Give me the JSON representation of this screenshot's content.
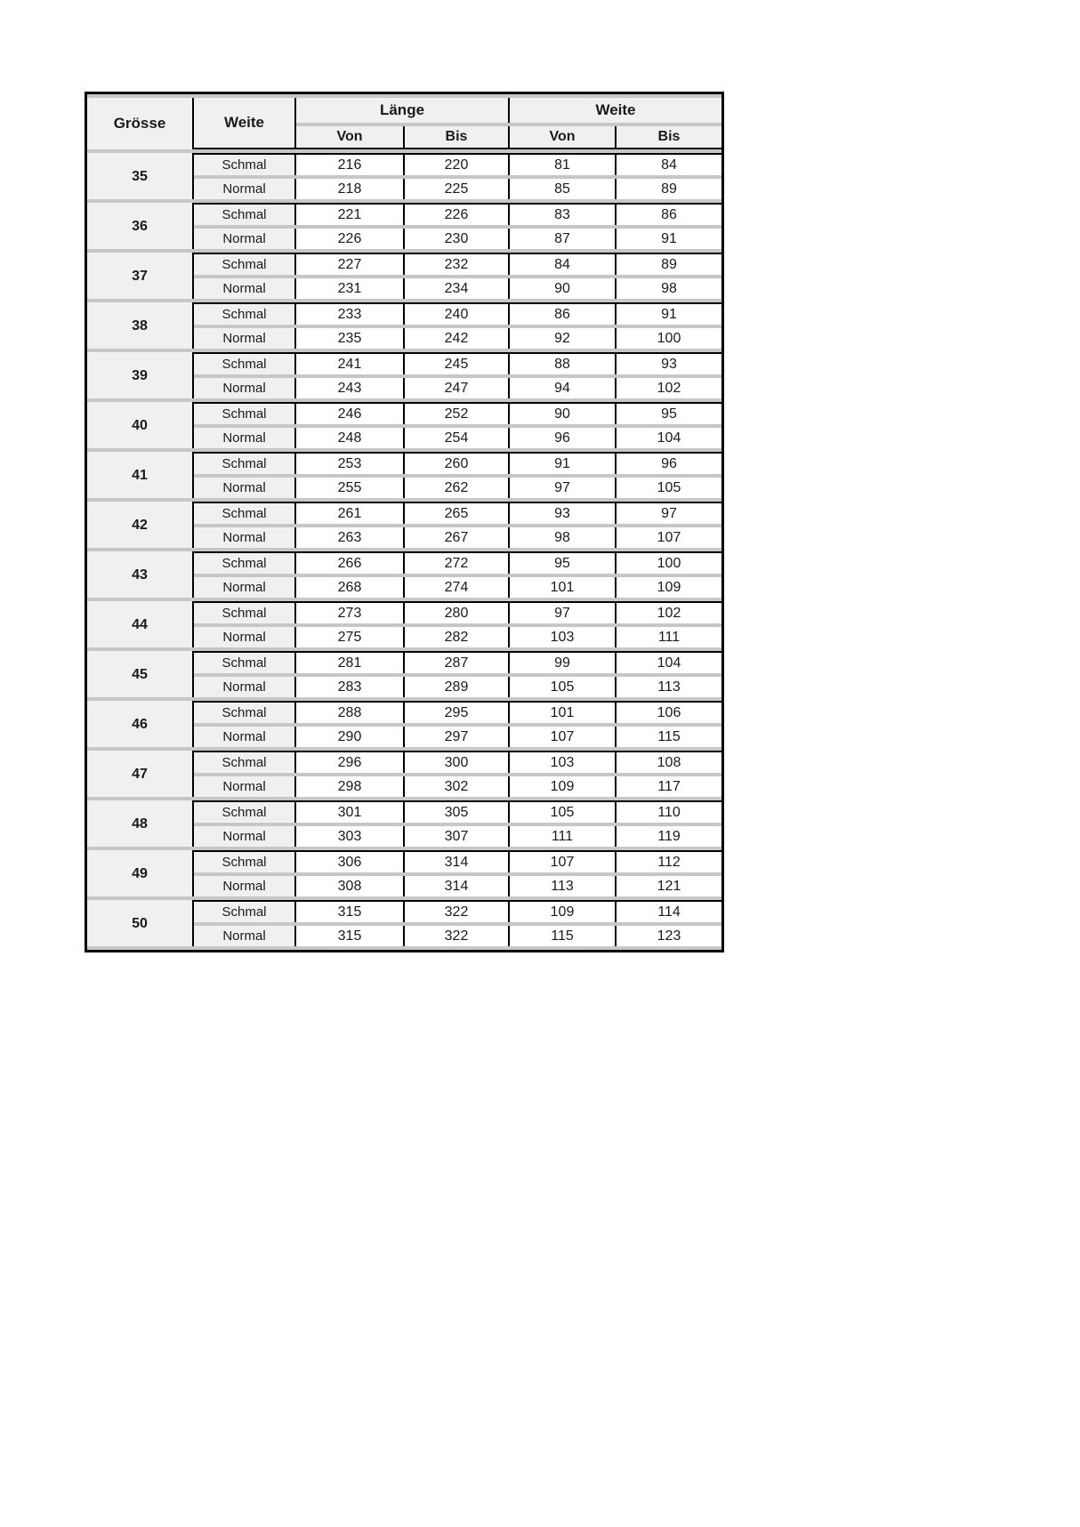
{
  "document": {
    "table": {
      "col_headers": {
        "grosse": "Grösse",
        "weite": "Weite",
        "laenge_group": "Länge",
        "weite_group": "Weite",
        "von": "Von",
        "bis": "Bis"
      },
      "rows": [
        {
          "size": "35",
          "variants": [
            {
              "weite": "Schmal",
              "laenge_von": "216",
              "laenge_bis": "220",
              "weite_von": "81",
              "weite_bis": "84"
            },
            {
              "weite": "Normal",
              "laenge_von": "218",
              "laenge_bis": "225",
              "weite_von": "85",
              "weite_bis": "89"
            }
          ]
        },
        {
          "size": "36",
          "variants": [
            {
              "weite": "Schmal",
              "laenge_von": "221",
              "laenge_bis": "226",
              "weite_von": "83",
              "weite_bis": "86"
            },
            {
              "weite": "Normal",
              "laenge_von": "226",
              "laenge_bis": "230",
              "weite_von": "87",
              "weite_bis": "91"
            }
          ]
        },
        {
          "size": "37",
          "variants": [
            {
              "weite": "Schmal",
              "laenge_von": "227",
              "laenge_bis": "232",
              "weite_von": "84",
              "weite_bis": "89"
            },
            {
              "weite": "Normal",
              "laenge_von": "231",
              "laenge_bis": "234",
              "weite_von": "90",
              "weite_bis": "98"
            }
          ]
        },
        {
          "size": "38",
          "variants": [
            {
              "weite": "Schmal",
              "laenge_von": "233",
              "laenge_bis": "240",
              "weite_von": "86",
              "weite_bis": "91"
            },
            {
              "weite": "Normal",
              "laenge_von": "235",
              "laenge_bis": "242",
              "weite_von": "92",
              "weite_bis": "100"
            }
          ]
        },
        {
          "size": "39",
          "variants": [
            {
              "weite": "Schmal",
              "laenge_von": "241",
              "laenge_bis": "245",
              "weite_von": "88",
              "weite_bis": "93"
            },
            {
              "weite": "Normal",
              "laenge_von": "243",
              "laenge_bis": "247",
              "weite_von": "94",
              "weite_bis": "102"
            }
          ]
        },
        {
          "size": "40",
          "variants": [
            {
              "weite": "Schmal",
              "laenge_von": "246",
              "laenge_bis": "252",
              "weite_von": "90",
              "weite_bis": "95"
            },
            {
              "weite": "Normal",
              "laenge_von": "248",
              "laenge_bis": "254",
              "weite_von": "96",
              "weite_bis": "104"
            }
          ]
        },
        {
          "size": "41",
          "variants": [
            {
              "weite": "Schmal",
              "laenge_von": "253",
              "laenge_bis": "260",
              "weite_von": "91",
              "weite_bis": "96"
            },
            {
              "weite": "Normal",
              "laenge_von": "255",
              "laenge_bis": "262",
              "weite_von": "97",
              "weite_bis": "105"
            }
          ]
        },
        {
          "size": "42",
          "variants": [
            {
              "weite": "Schmal",
              "laenge_von": "261",
              "laenge_bis": "265",
              "weite_von": "93",
              "weite_bis": "97"
            },
            {
              "weite": "Normal",
              "laenge_von": "263",
              "laenge_bis": "267",
              "weite_von": "98",
              "weite_bis": "107"
            }
          ]
        },
        {
          "size": "43",
          "variants": [
            {
              "weite": "Schmal",
              "laenge_von": "266",
              "laenge_bis": "272",
              "weite_von": "95",
              "weite_bis": "100"
            },
            {
              "weite": "Normal",
              "laenge_von": "268",
              "laenge_bis": "274",
              "weite_von": "101",
              "weite_bis": "109"
            }
          ]
        },
        {
          "size": "44",
          "variants": [
            {
              "weite": "Schmal",
              "laenge_von": "273",
              "laenge_bis": "280",
              "weite_von": "97",
              "weite_bis": "102"
            },
            {
              "weite": "Normal",
              "laenge_von": "275",
              "laenge_bis": "282",
              "weite_von": "103",
              "weite_bis": "111"
            }
          ]
        },
        {
          "size": "45",
          "variants": [
            {
              "weite": "Schmal",
              "laenge_von": "281",
              "laenge_bis": "287",
              "weite_von": "99",
              "weite_bis": "104"
            },
            {
              "weite": "Normal",
              "laenge_von": "283",
              "laenge_bis": "289",
              "weite_von": "105",
              "weite_bis": "113"
            }
          ]
        },
        {
          "size": "46",
          "variants": [
            {
              "weite": "Schmal",
              "laenge_von": "288",
              "laenge_bis": "295",
              "weite_von": "101",
              "weite_bis": "106"
            },
            {
              "weite": "Normal",
              "laenge_von": "290",
              "laenge_bis": "297",
              "weite_von": "107",
              "weite_bis": "115"
            }
          ]
        },
        {
          "size": "47",
          "variants": [
            {
              "weite": "Schmal",
              "laenge_von": "296",
              "laenge_bis": "300",
              "weite_von": "103",
              "weite_bis": "108"
            },
            {
              "weite": "Normal",
              "laenge_von": "298",
              "laenge_bis": "302",
              "weite_von": "109",
              "weite_bis": "117"
            }
          ]
        },
        {
          "size": "48",
          "variants": [
            {
              "weite": "Schmal",
              "laenge_von": "301",
              "laenge_bis": "305",
              "weite_von": "105",
              "weite_bis": "110"
            },
            {
              "weite": "Normal",
              "laenge_von": "303",
              "laenge_bis": "307",
              "weite_von": "111",
              "weite_bis": "119"
            }
          ]
        },
        {
          "size": "49",
          "variants": [
            {
              "weite": "Schmal",
              "laenge_von": "306",
              "laenge_bis": "314",
              "weite_von": "107",
              "weite_bis": "112"
            },
            {
              "weite": "Normal",
              "laenge_von": "308",
              "laenge_bis": "314",
              "weite_von": "113",
              "weite_bis": "121"
            }
          ]
        },
        {
          "size": "50",
          "variants": [
            {
              "weite": "Schmal",
              "laenge_von": "315",
              "laenge_bis": "322",
              "weite_von": "109",
              "weite_bis": "114"
            },
            {
              "weite": "Normal",
              "laenge_von": "315",
              "laenge_bis": "322",
              "weite_von": "115",
              "weite_bis": "123"
            }
          ]
        }
      ],
      "colors": {
        "outer_border": "#000000",
        "separator_band": "#c7c7c7",
        "label_cell_bg": "#f0f0f0",
        "data_cell_bg": "#ffffff"
      }
    }
  }
}
